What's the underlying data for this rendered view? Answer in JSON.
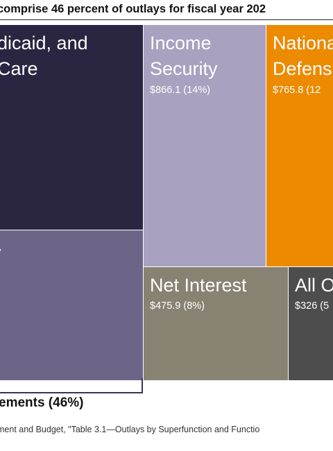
{
  "chart_data": {
    "type": "treemap",
    "title": "comprise 46 percent of outlays for fiscal year 202",
    "tiles": [
      {
        "key": "health",
        "name": "dicaid, and\nCare",
        "value_label": "",
        "color": "#2a2540"
      },
      {
        "key": "social-security",
        "name": "y",
        "value_label": "",
        "color": "#6d6588"
      },
      {
        "key": "income-security",
        "name": "Income\nSecurity",
        "value_label": "$866.1 (14%)",
        "value": 866.1,
        "percent": 14,
        "color": "#a8a1c0"
      },
      {
        "key": "national-defense",
        "name": "Nationa\nDefens",
        "value_label": "$765.8 (12",
        "value": 765.8,
        "color": "#ec8a00"
      },
      {
        "key": "net-interest",
        "name": "Net Interest",
        "value_label": "$475.9 (8%)",
        "value": 475.9,
        "percent": 8,
        "color": "#888273"
      },
      {
        "key": "all-other",
        "name": "All O",
        "value_label": "$326 (5",
        "value": 326,
        "color": "#4d4d4d"
      }
    ],
    "group_label": "ements (46%)",
    "source": "ment and Budget, \"Table 3.1—Outlays by Superfunction and Functio"
  }
}
